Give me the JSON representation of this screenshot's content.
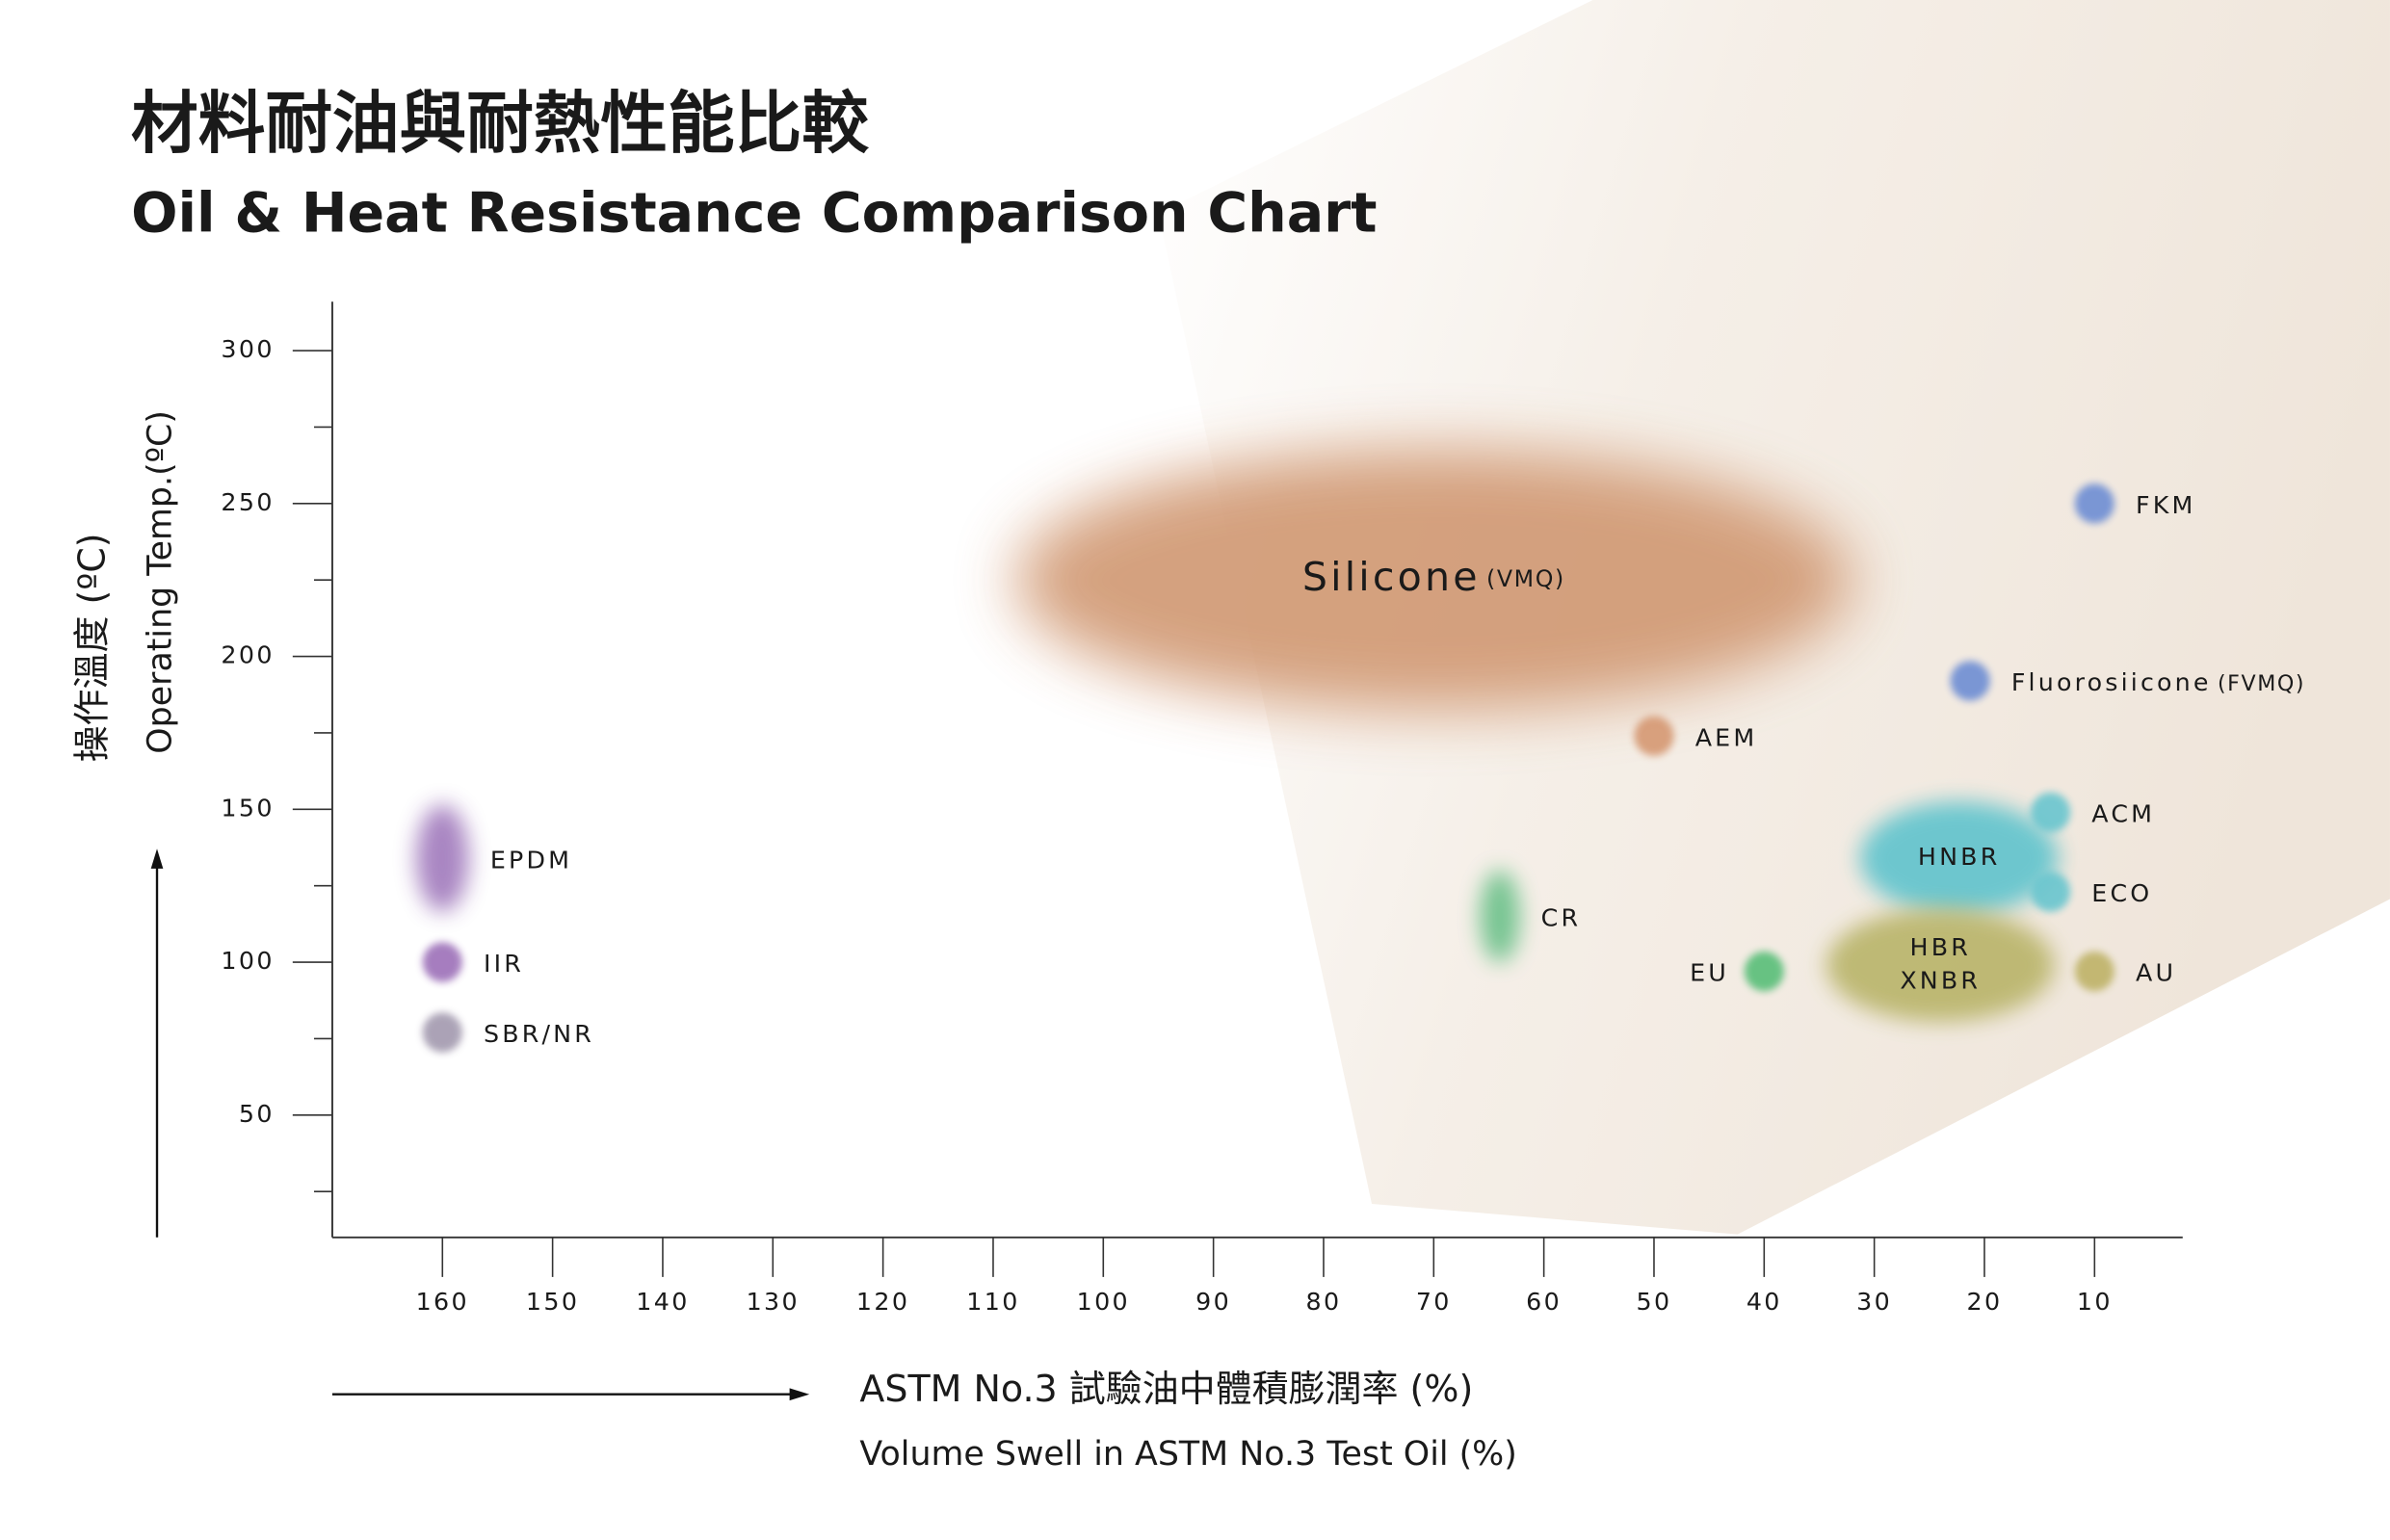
{
  "chart_data": {
    "type": "blob-scatter",
    "title": "材料耐油與耐熱性能比較",
    "subtitle": "Oil & Heat Resistance Comparison Chart",
    "y_label": "操作溫度 (ºC)",
    "y_label2": "Operating Temp.(ºC)",
    "x_label": "ASTM No.3 試驗油中體積膨潤率 (%)",
    "x_label2": "Volume Swell in ASTM No.3 Test Oil (%)",
    "xlim": [
      170,
      2
    ],
    "ylim": [
      10,
      316
    ],
    "xticks": [
      160,
      150,
      140,
      130,
      120,
      110,
      100,
      90,
      80,
      70,
      60,
      50,
      40,
      30,
      20,
      10
    ],
    "yticks": [
      50,
      100,
      150,
      200,
      250,
      300
    ],
    "yminorticks": [
      25,
      75,
      125,
      175,
      225,
      275
    ],
    "points": [
      {
        "name": "Silicone",
        "code": "(VMQ)",
        "x": 70,
        "y": 225,
        "w": 76,
        "h": 85,
        "color": "#d19a74",
        "label": "inside"
      },
      {
        "name": "EPDM",
        "x": 160,
        "y": 134,
        "w": 4.8,
        "h": 35,
        "color": "#a27bbd",
        "label": "right"
      },
      {
        "name": "IIR",
        "x": 160,
        "y": 100,
        "w": 3.6,
        "h": 13,
        "color": "#9f73ba",
        "label": "right"
      },
      {
        "name": "SBR/NR",
        "x": 160,
        "y": 77,
        "w": 3.6,
        "h": 13,
        "color": "#a49bb0",
        "label": "right"
      },
      {
        "name": "CR",
        "x": 64,
        "y": 115,
        "w": 3.6,
        "h": 30,
        "color": "#6cc18a",
        "label": "right"
      },
      {
        "name": "AEM",
        "x": 50,
        "y": 174,
        "w": 3.6,
        "h": 13,
        "color": "#d69a74",
        "label": "right"
      },
      {
        "name": "EU",
        "x": 40,
        "y": 97,
        "w": 3.6,
        "h": 13,
        "color": "#5cbf7a",
        "label": "left"
      },
      {
        "name": "HNBR",
        "x": 22.3,
        "y": 134,
        "w": 18,
        "h": 37,
        "color": "#62c4cd",
        "label": "inside"
      },
      {
        "name": "HBR",
        "name_line2": "XNBR",
        "x": 24,
        "y": 99,
        "w": 20.7,
        "h": 37,
        "color": "#bab56c",
        "label": "inside"
      },
      {
        "name": "ACM",
        "x": 14,
        "y": 149,
        "w": 3.6,
        "h": 13,
        "color": "#6cc6cf",
        "label": "right"
      },
      {
        "name": "ECO",
        "x": 14,
        "y": 123,
        "w": 3.6,
        "h": 13,
        "color": "#6cc6cf",
        "label": "right"
      },
      {
        "name": "AU",
        "x": 10,
        "y": 97,
        "w": 3.6,
        "h": 13,
        "color": "#c0b46a",
        "label": "right"
      },
      {
        "name": "FKM",
        "x": 10,
        "y": 250,
        "w": 3.6,
        "h": 13,
        "color": "#6f8fd4",
        "label": "right"
      },
      {
        "name": "Fluorosiicone",
        "code": "(FVMQ)",
        "x": 21.3,
        "y": 192,
        "w": 3.6,
        "h": 13,
        "color": "#6f8fd4",
        "label": "right"
      }
    ]
  }
}
